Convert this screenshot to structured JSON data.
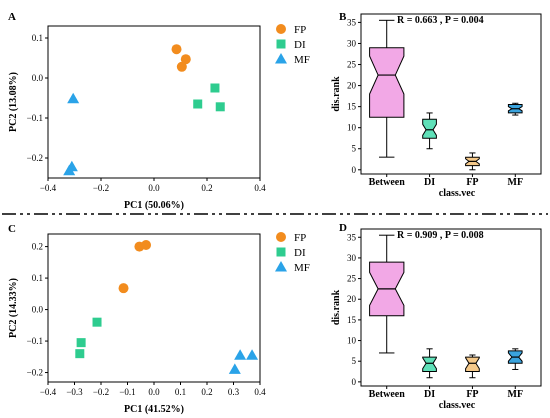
{
  "separator": {
    "color": "#000000"
  },
  "colors": {
    "FP": "#f28c1e",
    "DI": "#2ecc8f",
    "MF": "#2aa3e8",
    "box_between": "#f2a8e6",
    "box_di": "#5fe0b8",
    "box_fp": "#f5c98a",
    "box_mf": "#3aa3dd"
  },
  "chart_data": [
    {
      "id": "A",
      "type": "scatter",
      "panel_label": "A",
      "xlabel": "PC1 (50.06%)",
      "ylabel": "PC2  (13.08%)",
      "xlim": [
        -0.4,
        0.4
      ],
      "ylim": [
        -0.25,
        0.13
      ],
      "xticks": [
        -0.4,
        -0.2,
        0.0,
        0.2,
        0.4
      ],
      "xtick_labels": [
        "−0.4",
        "−0.2",
        "0.0",
        "0.2",
        "0.4"
      ],
      "yticks": [
        -0.2,
        -0.1,
        0.0,
        0.1
      ],
      "ytick_labels": [
        "−0.2",
        "−0.1",
        "0.0",
        "0.1"
      ],
      "legend": [
        "FP",
        "DI",
        "MF"
      ],
      "series": [
        {
          "name": "FP",
          "marker": "circle",
          "points": [
            [
              0.085,
              0.072
            ],
            [
              0.12,
              0.047
            ],
            [
              0.105,
              0.028
            ]
          ]
        },
        {
          "name": "DI",
          "marker": "square",
          "points": [
            [
              0.23,
              -0.025
            ],
            [
              0.165,
              -0.065
            ],
            [
              0.25,
              -0.072
            ]
          ]
        },
        {
          "name": "MF",
          "marker": "triangle",
          "points": [
            [
              -0.305,
              -0.052
            ],
            [
              -0.31,
              -0.222
            ],
            [
              -0.32,
              -0.232
            ]
          ]
        }
      ]
    },
    {
      "id": "B",
      "type": "box",
      "panel_label": "B",
      "xlabel": "class.vec",
      "ylabel": "dis.rank",
      "stat": "R = 0.663 ,  P = 0.004",
      "ylim": [
        -1,
        37
      ],
      "yticks": [
        0,
        5,
        10,
        15,
        20,
        25,
        30,
        35
      ],
      "categories": [
        "Between",
        "DI",
        "FP",
        "MF"
      ],
      "boxes": [
        {
          "q1": 12.5,
          "median": 22.5,
          "q3": 29,
          "lo": 3,
          "hi": 35.5,
          "notch": 4.5,
          "width": 0.8
        },
        {
          "q1": 7.5,
          "median": 9.5,
          "q3": 12,
          "lo": 5,
          "hi": 13.5,
          "notch": 1.3,
          "width": 0.32
        },
        {
          "q1": 1,
          "median": 2,
          "q3": 3,
          "lo": 0,
          "hi": 4,
          "notch": 0.6,
          "width": 0.32
        },
        {
          "q1": 13.5,
          "median": 14.5,
          "q3": 15.5,
          "lo": 13,
          "hi": 15.8,
          "notch": 0.5,
          "width": 0.32
        }
      ]
    },
    {
      "id": "C",
      "type": "scatter",
      "panel_label": "C",
      "xlabel": "PC1 (41.52%)",
      "ylabel": "PC2  (14.33%)",
      "xlim": [
        -0.4,
        0.4
      ],
      "ylim": [
        -0.23,
        0.24
      ],
      "xticks": [
        -0.4,
        -0.3,
        -0.2,
        -0.1,
        0.0,
        0.1,
        0.2,
        0.3,
        0.4
      ],
      "xtick_labels": [
        "−0.4",
        "−0.3",
        "−0.2",
        "−0.1",
        "0.0",
        "0.1",
        "0.2",
        "0.3",
        "0.4"
      ],
      "yticks": [
        -0.2,
        -0.1,
        0.0,
        0.1,
        0.2
      ],
      "ytick_labels": [
        "−0.2",
        "−0.1",
        "0.0",
        "0.1",
        "0.2"
      ],
      "legend": [
        "FP",
        "DI",
        "MF"
      ],
      "series": [
        {
          "name": "FP",
          "marker": "circle",
          "points": [
            [
              -0.055,
              0.2
            ],
            [
              -0.03,
              0.205
            ],
            [
              -0.115,
              0.068
            ]
          ]
        },
        {
          "name": "DI",
          "marker": "square",
          "points": [
            [
              -0.215,
              -0.04
            ],
            [
              -0.275,
              -0.105
            ],
            [
              -0.28,
              -0.14
            ]
          ]
        },
        {
          "name": "MF",
          "marker": "triangle",
          "points": [
            [
              0.325,
              -0.145
            ],
            [
              0.37,
              -0.145
            ],
            [
              0.305,
              -0.19
            ]
          ]
        }
      ]
    },
    {
      "id": "D",
      "type": "box",
      "panel_label": "D",
      "xlabel": "class.vec",
      "ylabel": "dis.rank",
      "stat": "R = 0.909 ,  P = 0.008",
      "ylim": [
        -1,
        37
      ],
      "yticks": [
        0,
        5,
        10,
        15,
        20,
        25,
        30,
        35
      ],
      "categories": [
        "Between",
        "DI",
        "FP",
        "MF"
      ],
      "boxes": [
        {
          "q1": 16,
          "median": 22.5,
          "q3": 29,
          "lo": 7,
          "hi": 35.5,
          "notch": 4.0,
          "width": 0.8
        },
        {
          "q1": 2.5,
          "median": 4.5,
          "q3": 6,
          "lo": 1,
          "hi": 8,
          "notch": 1.3,
          "width": 0.32
        },
        {
          "q1": 2.5,
          "median": 4.5,
          "q3": 6,
          "lo": 1,
          "hi": 6.5,
          "notch": 1.3,
          "width": 0.32
        },
        {
          "q1": 4.5,
          "median": 6,
          "q3": 7.5,
          "lo": 3,
          "hi": 8,
          "notch": 1.0,
          "width": 0.32
        }
      ]
    }
  ]
}
